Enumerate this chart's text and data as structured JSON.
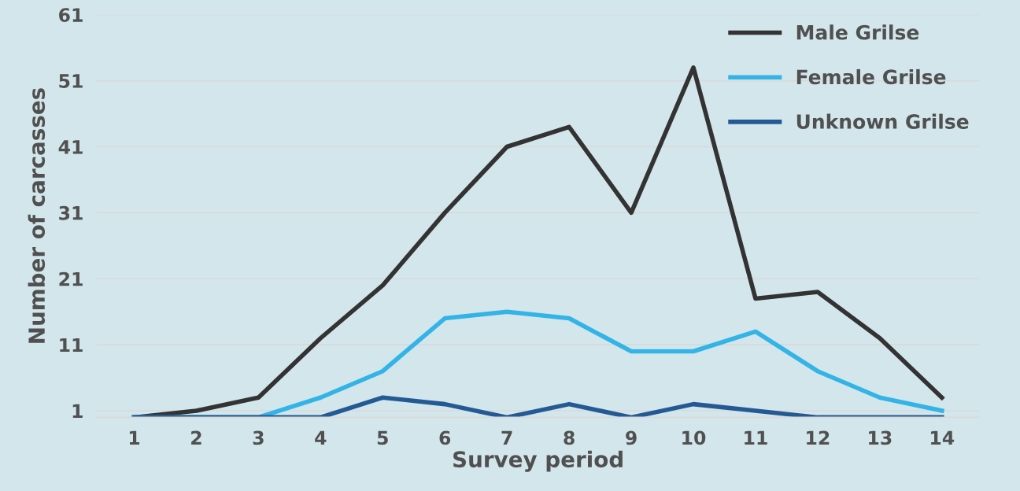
{
  "chart_data": {
    "type": "line",
    "xlabel": "Survey period",
    "ylabel": "Number of carcasses",
    "categories": [
      "1",
      "2",
      "3",
      "4",
      "5",
      "6",
      "7",
      "8",
      "9",
      "10",
      "11",
      "12",
      "13",
      "14"
    ],
    "series": [
      {
        "name": "Male Grilse",
        "color": "#333333",
        "values": [
          0,
          1,
          3,
          12,
          20,
          31,
          41,
          44,
          31,
          53,
          18,
          19,
          12,
          3
        ]
      },
      {
        "name": "Female Grilse",
        "color": "#33b4e6",
        "values": [
          0,
          0,
          0,
          3,
          7,
          15,
          16,
          15,
          10,
          10,
          13,
          7,
          3,
          1
        ]
      },
      {
        "name": "Unknown Grilse",
        "color": "#245a94",
        "values": [
          0,
          0,
          0,
          0,
          3,
          2,
          0,
          2,
          0,
          2,
          1,
          0,
          0,
          0
        ]
      }
    ],
    "ylim": [
      0,
      61
    ],
    "yticks": [
      1,
      11,
      21,
      31,
      41,
      51,
      61
    ],
    "grid": "y",
    "legend": "top right",
    "marker": "none",
    "line_style": "solid"
  }
}
